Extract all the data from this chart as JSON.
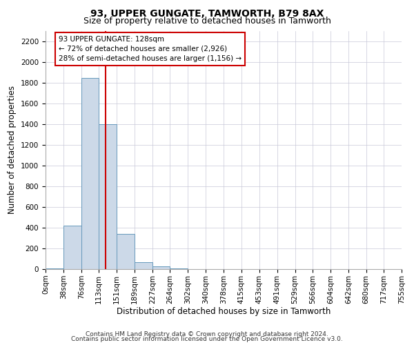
{
  "title": "93, UPPER GUNGATE, TAMWORTH, B79 8AX",
  "subtitle": "Size of property relative to detached houses in Tamworth",
  "xlabel": "Distribution of detached houses by size in Tamworth",
  "ylabel": "Number of detached properties",
  "bar_color": "#ccd9e8",
  "bar_edge_color": "#6699bb",
  "annotation_line_color": "#cc0000",
  "annotation_box_color": "#cc0000",
  "annotation_line1": "93 UPPER GUNGATE: 128sqm",
  "annotation_line2": "← 72% of detached houses are smaller (2,926)",
  "annotation_line3": "28% of semi-detached houses are larger (1,156) →",
  "property_size": 128,
  "bin_edges": [
    0,
    38,
    76,
    113,
    151,
    189,
    227,
    264,
    302,
    340,
    378,
    415,
    453,
    491,
    529,
    566,
    604,
    642,
    680,
    717,
    755
  ],
  "bin_labels": [
    "0sqm",
    "38sqm",
    "76sqm",
    "113sqm",
    "151sqm",
    "189sqm",
    "227sqm",
    "264sqm",
    "302sqm",
    "340sqm",
    "378sqm",
    "415sqm",
    "453sqm",
    "491sqm",
    "529sqm",
    "566sqm",
    "604sqm",
    "642sqm",
    "680sqm",
    "717sqm",
    "755sqm"
  ],
  "bar_values": [
    10,
    420,
    1850,
    1400,
    340,
    70,
    25,
    5,
    2,
    1,
    0,
    0,
    0,
    0,
    0,
    0,
    0,
    0,
    0,
    0
  ],
  "ylim": [
    0,
    2300
  ],
  "yticks": [
    0,
    200,
    400,
    600,
    800,
    1000,
    1200,
    1400,
    1600,
    1800,
    2000,
    2200
  ],
  "footer_line1": "Contains HM Land Registry data © Crown copyright and database right 2024.",
  "footer_line2": "Contains public sector information licensed under the Open Government Licence v3.0.",
  "background_color": "#ffffff",
  "grid_color": "#c8c8d8",
  "title_fontsize": 10,
  "subtitle_fontsize": 9,
  "axis_label_fontsize": 8.5,
  "tick_fontsize": 7.5,
  "annotation_fontsize": 7.5,
  "footer_fontsize": 6.5
}
